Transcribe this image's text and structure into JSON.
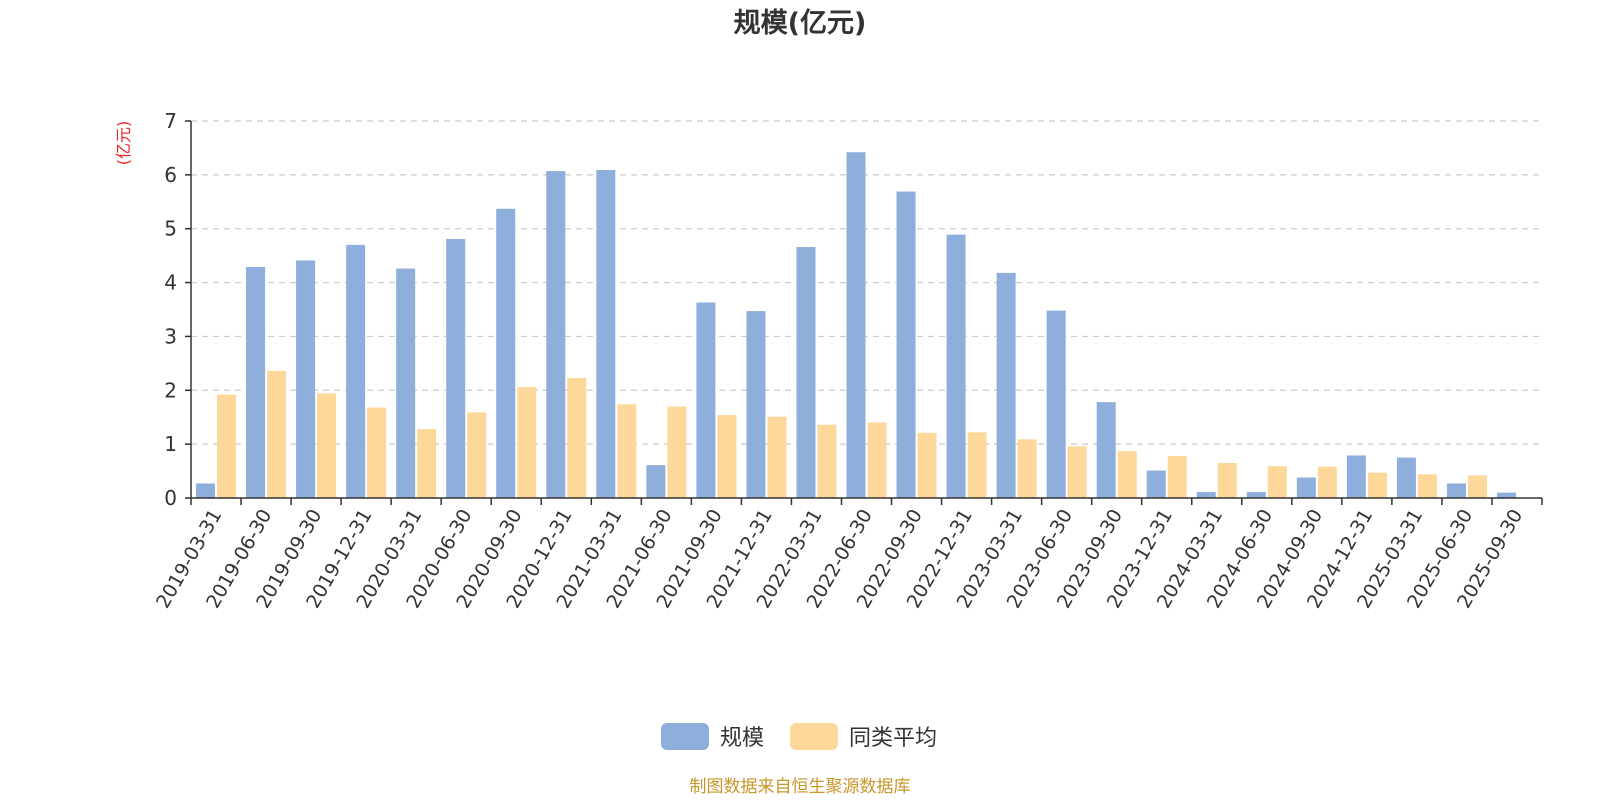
{
  "chart_data": {
    "type": "bar",
    "title": "规模(亿元)",
    "ylabel": "(亿元)",
    "ylim": [
      0,
      7
    ],
    "yticks": [
      0,
      1,
      2,
      3,
      4,
      5,
      6,
      7
    ],
    "grid": true,
    "legend_position": "bottom",
    "categories": [
      "2019-03-31",
      "2019-06-30",
      "2019-09-30",
      "2019-12-31",
      "2020-03-31",
      "2020-06-30",
      "2020-09-30",
      "2020-12-31",
      "2021-03-31",
      "2021-06-30",
      "2021-09-30",
      "2021-12-31",
      "2022-03-31",
      "2022-06-30",
      "2022-09-30",
      "2022-12-31",
      "2023-03-31",
      "2023-06-30",
      "2023-09-30",
      "2023-12-31",
      "2024-03-31",
      "2024-06-30",
      "2024-09-30",
      "2024-12-31",
      "2025-03-31",
      "2025-06-30",
      "2025-09-30"
    ],
    "series": [
      {
        "name": "规模",
        "color": "#8eaedb",
        "values": [
          0.27,
          4.29,
          4.41,
          4.7,
          4.26,
          4.81,
          5.37,
          6.07,
          6.09,
          0.61,
          3.63,
          3.47,
          4.66,
          6.42,
          5.69,
          4.89,
          4.18,
          3.48,
          1.78,
          0.51,
          0.11,
          0.11,
          0.38,
          0.79,
          0.75,
          0.27,
          0.1
        ]
      },
      {
        "name": "同类平均",
        "color": "#fdd89a",
        "values": [
          1.92,
          2.36,
          1.94,
          1.68,
          1.28,
          1.59,
          2.06,
          2.23,
          1.74,
          1.7,
          1.54,
          1.51,
          1.36,
          1.4,
          1.21,
          1.22,
          1.09,
          0.96,
          0.87,
          0.78,
          0.65,
          0.59,
          0.58,
          0.47,
          0.44,
          0.42,
          null
        ]
      }
    ]
  },
  "footer": {
    "source": "制图数据来自恒生聚源数据库"
  }
}
